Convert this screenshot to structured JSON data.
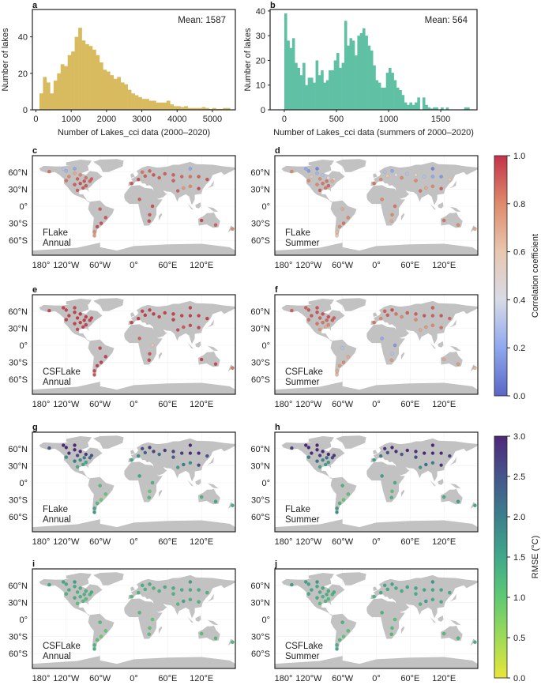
{
  "chart_data": [
    {
      "panel": "a",
      "type": "bar",
      "annotation": "Mean: 1587",
      "xlabel": "Number of Lakes_cci data (2000–2020)",
      "ylabel": "Number of lakes",
      "color": "#d9bb5f",
      "bin_width": 100,
      "bin_starts": [
        100,
        200,
        300,
        400,
        500,
        600,
        700,
        800,
        900,
        1000,
        1100,
        1200,
        1300,
        1400,
        1500,
        1600,
        1700,
        1800,
        1900,
        2000,
        2100,
        2200,
        2300,
        2400,
        2500,
        2600,
        2700,
        2800,
        2900,
        3000,
        3100,
        3200,
        3300,
        3400,
        3500,
        3600,
        3700,
        3800,
        3900,
        4000,
        4100,
        4200,
        4300,
        4400,
        4500,
        4600,
        4700,
        4800,
        4900,
        5000,
        5100,
        5200,
        5300,
        5400
      ],
      "values": [
        9,
        18,
        15,
        9,
        16,
        20,
        25,
        24,
        30,
        32,
        40,
        45,
        38,
        36,
        35,
        33,
        30,
        26,
        22,
        21,
        19,
        17,
        18,
        15,
        14,
        11,
        9,
        8,
        7,
        6,
        6,
        5,
        5,
        4,
        4,
        4,
        5,
        3,
        2,
        2,
        1.5,
        2,
        1,
        1,
        1,
        1,
        1.5,
        1,
        0.5,
        1,
        0.5,
        0.5,
        1,
        1
      ],
      "xticks": [
        0,
        1000,
        2000,
        3000,
        4000,
        5000
      ],
      "yticks": [
        0,
        20,
        40
      ],
      "xlim": [
        -100,
        5650
      ],
      "ylim": [
        0,
        55
      ]
    },
    {
      "panel": "b",
      "type": "bar",
      "annotation": "Mean: 564",
      "xlabel": "Number of Lakes_cci data (summers of 2000–2020)",
      "ylabel": "Number of lakes",
      "color": "#5fc0a4",
      "bin_width": 25,
      "bin_starts": [
        0,
        25,
        50,
        75,
        100,
        125,
        150,
        175,
        200,
        225,
        250,
        275,
        300,
        325,
        350,
        375,
        400,
        425,
        450,
        475,
        500,
        525,
        550,
        575,
        600,
        625,
        650,
        675,
        700,
        725,
        750,
        775,
        800,
        825,
        850,
        875,
        900,
        925,
        950,
        975,
        1000,
        1025,
        1050,
        1075,
        1100,
        1125,
        1150,
        1175,
        1200,
        1225,
        1250,
        1275,
        1300,
        1325,
        1350,
        1375,
        1400,
        1425,
        1450,
        1475,
        1500,
        1525,
        1550,
        1575,
        1600,
        1625,
        1650,
        1675,
        1700,
        1725,
        1750
      ],
      "values": [
        39,
        28,
        25,
        29,
        19,
        17,
        14,
        19,
        10,
        13,
        13,
        11,
        20,
        14,
        16,
        11,
        12,
        16,
        16,
        20,
        23,
        17,
        19,
        36,
        26,
        29,
        28,
        22,
        30,
        31,
        33,
        30,
        26,
        24,
        18,
        12,
        11,
        9,
        9,
        15,
        17,
        15,
        12,
        9,
        8,
        6,
        3,
        2,
        3,
        2,
        3,
        5,
        0,
        5,
        2,
        1,
        0.5,
        1,
        1,
        0,
        1,
        0,
        1,
        0,
        0,
        0,
        0,
        0,
        0,
        1,
        1
      ],
      "xticks": [
        0,
        500,
        1000,
        1500
      ],
      "yticks": [
        0,
        10,
        20,
        30,
        40
      ],
      "xlim": [
        -136,
        1848
      ],
      "ylim": [
        0,
        40.6
      ]
    }
  ],
  "maps": {
    "lon_ticks": [
      {
        "lon": -180,
        "label": "180°"
      },
      {
        "lon": -120,
        "label": "120°W"
      },
      {
        "lon": -60,
        "label": "60°W"
      },
      {
        "lon": 0,
        "label": "0°"
      },
      {
        "lon": 60,
        "label": "60°E"
      },
      {
        "lon": 120,
        "label": "120°E"
      }
    ],
    "lat_ticks": [
      {
        "lat": 60,
        "label": "60°N"
      },
      {
        "lat": 30,
        "label": "30°N"
      },
      {
        "lat": 0,
        "label": "0°"
      },
      {
        "lat": -30,
        "label": "30°S"
      },
      {
        "lat": -60,
        "label": "60°S"
      }
    ],
    "land_color": "#c2c2c2",
    "lake_locations": [
      [
        -150,
        61
      ],
      [
        -120,
        62
      ],
      [
        -105,
        58
      ],
      [
        -95,
        55
      ],
      [
        -85,
        50
      ],
      [
        -75,
        48
      ],
      [
        -115,
        52
      ],
      [
        -100,
        48
      ],
      [
        -88,
        44
      ],
      [
        -78,
        44
      ],
      [
        -95,
        40
      ],
      [
        -85,
        36
      ],
      [
        -105,
        38
      ],
      [
        -90,
        32
      ],
      [
        -100,
        28
      ],
      [
        -105,
        66
      ],
      [
        -125,
        66
      ],
      [
        -120,
        45
      ],
      [
        -60,
        -5
      ],
      [
        -50,
        -20
      ],
      [
        -58,
        -30
      ],
      [
        -65,
        -36
      ],
      [
        -70,
        -45
      ],
      [
        -70,
        -52
      ],
      [
        -4,
        40
      ],
      [
        8,
        47
      ],
      [
        20,
        53
      ],
      [
        28,
        62
      ],
      [
        15,
        60
      ],
      [
        35,
        55
      ],
      [
        45,
        50
      ],
      [
        55,
        57
      ],
      [
        70,
        55
      ],
      [
        85,
        52
      ],
      [
        100,
        52
      ],
      [
        115,
        52
      ],
      [
        130,
        47
      ],
      [
        88,
        32
      ],
      [
        100,
        35
      ],
      [
        115,
        31
      ],
      [
        78,
        27
      ],
      [
        70,
        45
      ],
      [
        100,
        66
      ],
      [
        10,
        12
      ],
      [
        33,
        0
      ],
      [
        28,
        -15
      ],
      [
        27,
        -26
      ],
      [
        145,
        -33
      ],
      [
        120,
        -25
      ],
      [
        175,
        -40
      ]
    ],
    "panels": [
      {
        "panel": "c",
        "model": "FLake",
        "season": "Annual",
        "metric": "correlation",
        "values": [
          0.85,
          0.25,
          0.7,
          0.8,
          0.85,
          0.9,
          0.8,
          0.9,
          0.92,
          0.9,
          0.93,
          0.92,
          0.9,
          0.92,
          0.9,
          0.2,
          0.3,
          0.85,
          0.9,
          0.92,
          0.93,
          0.94,
          0.8,
          0.75,
          0.92,
          0.93,
          0.9,
          0.88,
          0.85,
          0.92,
          0.9,
          0.9,
          0.9,
          0.88,
          0.85,
          0.9,
          0.92,
          0.75,
          0.8,
          0.95,
          0.9,
          0.9,
          0.2,
          0.9,
          0.93,
          0.92,
          0.93,
          0.9,
          0.95,
          0.8
        ]
      },
      {
        "panel": "d",
        "model": "FLake",
        "season": "Summer",
        "metric": "correlation",
        "values": [
          0.8,
          0.15,
          0.25,
          0.3,
          0.4,
          0.5,
          0.6,
          0.8,
          0.85,
          0.7,
          0.85,
          0.88,
          0.8,
          0.85,
          0.9,
          0.1,
          0.2,
          0.8,
          0.7,
          0.8,
          0.85,
          0.8,
          0.65,
          0.6,
          0.85,
          0.8,
          0.6,
          0.2,
          0.3,
          0.4,
          0.8,
          0.3,
          0.5,
          0.3,
          0.2,
          0.15,
          0.6,
          0.7,
          0.8,
          0.9,
          0.85,
          0.8,
          0.1,
          0.8,
          0.85,
          0.8,
          0.7,
          0.8,
          0.85,
          0.7
        ]
      },
      {
        "panel": "e",
        "model": "CSFLake",
        "season": "Annual",
        "metric": "correlation",
        "values": [
          0.95,
          0.96,
          0.97,
          0.98,
          0.98,
          0.97,
          0.97,
          0.98,
          0.98,
          0.98,
          0.97,
          0.97,
          0.96,
          0.96,
          0.95,
          0.95,
          0.96,
          0.97,
          0.96,
          0.97,
          0.97,
          0.97,
          0.95,
          0.93,
          0.97,
          0.98,
          0.98,
          0.97,
          0.97,
          0.98,
          0.97,
          0.97,
          0.97,
          0.97,
          0.97,
          0.97,
          0.97,
          0.92,
          0.95,
          0.96,
          0.94,
          0.97,
          0.95,
          0.9,
          0.6,
          0.93,
          0.95,
          0.95,
          0.96,
          0.85
        ]
      },
      {
        "panel": "f",
        "model": "CSFLake",
        "season": "Summer",
        "metric": "correlation",
        "values": [
          0.9,
          0.92,
          0.93,
          0.93,
          0.93,
          0.9,
          0.92,
          0.9,
          0.88,
          0.9,
          0.85,
          0.8,
          0.85,
          0.7,
          0.75,
          0.92,
          0.9,
          0.85,
          0.3,
          0.7,
          0.8,
          0.75,
          0.7,
          0.65,
          0.85,
          0.8,
          0.9,
          0.93,
          0.9,
          0.85,
          0.8,
          0.9,
          0.9,
          0.92,
          0.9,
          0.92,
          0.88,
          0.75,
          0.8,
          0.85,
          0.7,
          0.8,
          0.9,
          0.2,
          0.15,
          0.3,
          0.75,
          0.75,
          0.7,
          0.65
        ]
      },
      {
        "panel": "g",
        "model": "FLake",
        "season": "Annual",
        "metric": "rmse",
        "values": [
          2.5,
          3.0,
          3.0,
          3.0,
          2.8,
          2.5,
          2.9,
          2.6,
          2.0,
          2.2,
          1.8,
          1.5,
          2.0,
          1.5,
          1.4,
          3.0,
          3.0,
          1.8,
          1.2,
          1.0,
          0.9,
          1.2,
          1.5,
          1.7,
          1.5,
          1.8,
          2.3,
          2.8,
          2.6,
          2.7,
          2.2,
          2.8,
          2.7,
          2.8,
          2.9,
          3.0,
          2.5,
          2.0,
          1.8,
          2.6,
          1.6,
          2.4,
          3.0,
          1.5,
          1.3,
          1.0,
          1.2,
          1.5,
          1.3,
          1.4
        ]
      },
      {
        "panel": "h",
        "model": "FLake",
        "season": "Summer",
        "metric": "rmse",
        "values": [
          2.7,
          3.0,
          3.0,
          3.0,
          3.0,
          2.8,
          3.0,
          2.8,
          2.2,
          2.6,
          1.9,
          1.6,
          2.2,
          1.6,
          1.5,
          3.0,
          3.0,
          2.0,
          1.3,
          1.1,
          1.0,
          1.3,
          1.6,
          1.8,
          1.6,
          2.0,
          2.5,
          3.0,
          2.9,
          2.9,
          2.4,
          3.0,
          2.9,
          3.0,
          3.0,
          3.0,
          2.7,
          2.2,
          2.0,
          2.9,
          1.7,
          2.6,
          3.0,
          1.6,
          1.4,
          1.1,
          1.3,
          1.6,
          1.4,
          1.5
        ]
      },
      {
        "panel": "i",
        "model": "CSFLake",
        "season": "Annual",
        "metric": "rmse",
        "values": [
          1.5,
          1.4,
          1.4,
          1.3,
          1.3,
          1.4,
          1.4,
          1.3,
          1.3,
          1.3,
          1.3,
          1.2,
          1.4,
          1.2,
          1.1,
          1.6,
          1.5,
          1.3,
          1.2,
          1.0,
          0.9,
          1.1,
          1.3,
          1.4,
          1.2,
          1.3,
          1.3,
          1.4,
          1.4,
          1.3,
          1.3,
          1.4,
          1.4,
          1.4,
          1.4,
          1.4,
          1.3,
          1.5,
          1.3,
          1.3,
          1.2,
          1.3,
          1.6,
          1.2,
          1.0,
          1.1,
          1.1,
          1.2,
          1.1,
          1.3
        ]
      },
      {
        "panel": "j",
        "model": "CSFLake",
        "season": "Summer",
        "metric": "rmse",
        "values": [
          1.6,
          1.5,
          1.4,
          1.4,
          1.4,
          1.4,
          1.5,
          1.4,
          1.4,
          1.3,
          1.3,
          1.2,
          1.4,
          1.2,
          1.1,
          1.7,
          1.6,
          1.4,
          1.3,
          1.1,
          1.0,
          1.2,
          1.4,
          1.5,
          1.3,
          1.4,
          1.4,
          1.5,
          1.5,
          1.4,
          1.4,
          1.5,
          1.5,
          1.5,
          1.5,
          1.5,
          1.4,
          1.6,
          1.4,
          1.4,
          1.3,
          1.4,
          1.7,
          1.3,
          1.1,
          1.2,
          1.2,
          1.3,
          1.2,
          1.4
        ]
      }
    ]
  },
  "colorbars": {
    "correlation": {
      "label": "Correlation coefficient",
      "range": [
        0,
        1
      ],
      "ticks": [
        "0.0",
        "0.2",
        "0.4",
        "0.6",
        "0.8",
        "1.0"
      ],
      "colors": [
        "#5a66c6",
        "#8fa8ee",
        "#d8dbe6",
        "#e8c7b0",
        "#df8a6c",
        "#c2334a"
      ]
    },
    "rmse": {
      "label": "RMSE (°C)",
      "range": [
        0,
        3
      ],
      "ticks": [
        "0.0",
        "0.5",
        "1.0",
        "1.5",
        "2.0",
        "2.5",
        "3.0"
      ],
      "colors": [
        "#e8e63a",
        "#9edb57",
        "#5fca73",
        "#3fa98a",
        "#3c7f8c",
        "#45558c",
        "#4d2878"
      ]
    }
  }
}
